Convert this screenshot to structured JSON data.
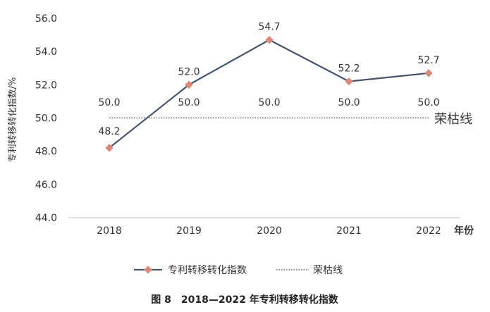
{
  "chart_data": {
    "type": "line",
    "categories": [
      "2018",
      "2019",
      "2020",
      "2021",
      "2022"
    ],
    "series": [
      {
        "name": "专利转移转化指数",
        "values": [
          48.2,
          52.0,
          54.7,
          52.2,
          52.7
        ],
        "color": "#44546A",
        "marker_color": "#D9887A"
      },
      {
        "name": "荣枯线",
        "values": [
          50.0,
          50.0,
          50.0,
          50.0,
          50.0
        ],
        "color": "#333333",
        "style": "dotted"
      }
    ],
    "ylim": [
      44.0,
      56.0
    ],
    "yticks": [
      "44.0",
      "46.0",
      "48.0",
      "50.0",
      "52.0",
      "54.0",
      "56.0"
    ],
    "ylabel": "专利转移转化指数/%",
    "xlabel": "年份",
    "grid": false,
    "legend_position": "bottom",
    "annotation": "荣枯线",
    "caption": "图 8　2018—2022 年专利转移转化指数"
  }
}
